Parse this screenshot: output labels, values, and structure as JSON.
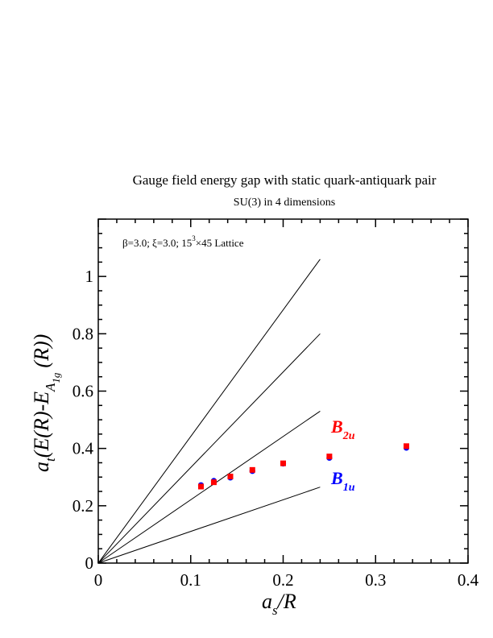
{
  "chart_data": {
    "type": "scatter",
    "title": "Gauge field energy gap with static quark-antiquark pair",
    "subtitle": "SU(3) in 4 dimensions",
    "annotation": {
      "beta_xi": "β=3.0;  ξ=3.0;  15",
      "exponent": "3",
      "lattice": "×45 Lattice"
    },
    "xlabel": {
      "main": "a",
      "sub": "s",
      "rest": "/R"
    },
    "ylabel": {
      "a": "a",
      "t": "t",
      "mid": "(E(R)-E",
      "sub1": "A",
      "sub2": "1g",
      "end": "(R))"
    },
    "xlim": [
      0,
      0.4
    ],
    "ylim": [
      0,
      1.2
    ],
    "x_ticks": [
      "0",
      "0.1",
      "0.2",
      "0.3",
      "0.4"
    ],
    "y_ticks": [
      "0",
      "0.2",
      "0.4",
      "0.6",
      "0.8",
      "1"
    ],
    "grid": false,
    "series": [
      {
        "name": "B1u",
        "label_main": "B",
        "label_sub": "1u",
        "color": "#0000ff",
        "x": [
          0.1111,
          0.125,
          0.1429,
          0.1667,
          0.2,
          0.25,
          0.3333
        ],
        "y": [
          0.272,
          0.287,
          0.298,
          0.321,
          0.347,
          0.367,
          0.402
        ]
      },
      {
        "name": "B2u",
        "label_main": "B",
        "label_sub": "2u",
        "color": "#ff0000",
        "x": [
          0.1111,
          0.125,
          0.1429,
          0.1667,
          0.2,
          0.25,
          0.3333
        ],
        "y": [
          0.267,
          0.282,
          0.302,
          0.325,
          0.348,
          0.372,
          0.408
        ]
      }
    ],
    "reference_lines": [
      {
        "x": [
          0,
          0.24
        ],
        "y": [
          0,
          1.06
        ]
      },
      {
        "x": [
          0,
          0.24
        ],
        "y": [
          0,
          0.8
        ]
      },
      {
        "x": [
          0,
          0.24
        ],
        "y": [
          0,
          0.53
        ]
      },
      {
        "x": [
          0,
          0.24
        ],
        "y": [
          0,
          0.265
        ]
      }
    ]
  }
}
